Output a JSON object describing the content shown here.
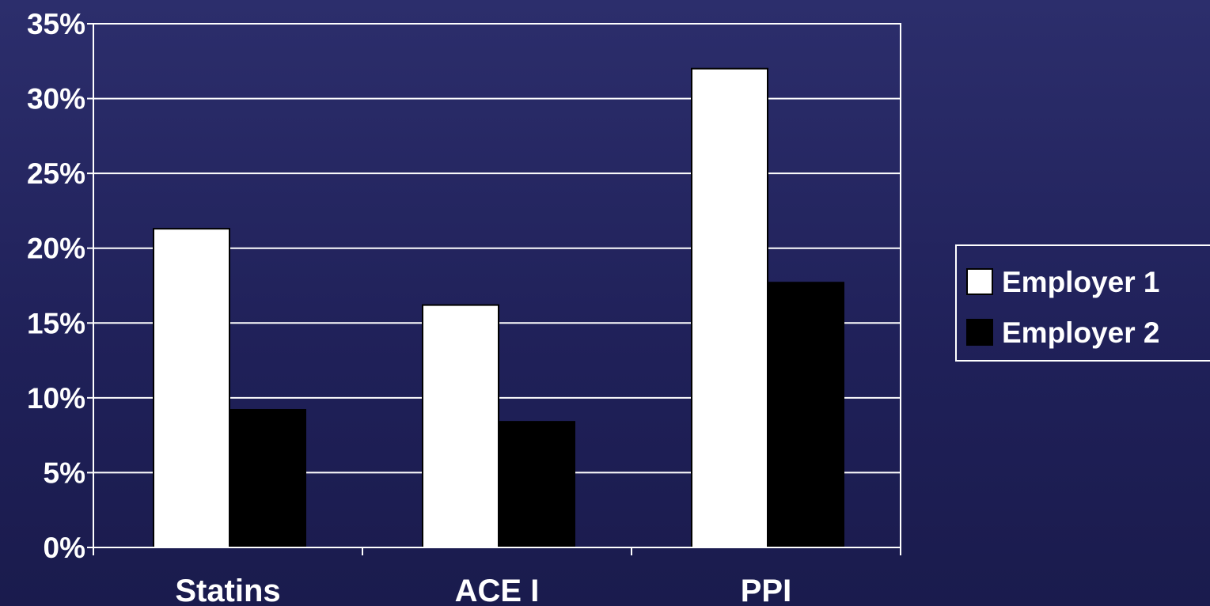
{
  "chart_data": {
    "type": "bar",
    "title": "",
    "xlabel": "",
    "ylabel": "",
    "categories": [
      "Statins",
      "ACE I",
      "PPI"
    ],
    "series": [
      {
        "name": "Employer 1",
        "values": [
          21.3,
          16.2,
          32.0
        ],
        "color": "#ffffff"
      },
      {
        "name": "Employer 2",
        "values": [
          9.2,
          8.4,
          17.7
        ],
        "color": "#000000"
      }
    ],
    "ylim": [
      0,
      35
    ],
    "yticks": [
      0,
      5,
      10,
      15,
      20,
      25,
      30,
      35
    ],
    "ytick_labels": [
      "0%",
      "5%",
      "10%",
      "15%",
      "20%",
      "25%",
      "30%",
      "35%"
    ],
    "grid": true,
    "legend_position": "right",
    "colors": {
      "background": "#22235c",
      "axis": "#ffffff",
      "text": "#ffffff"
    }
  }
}
